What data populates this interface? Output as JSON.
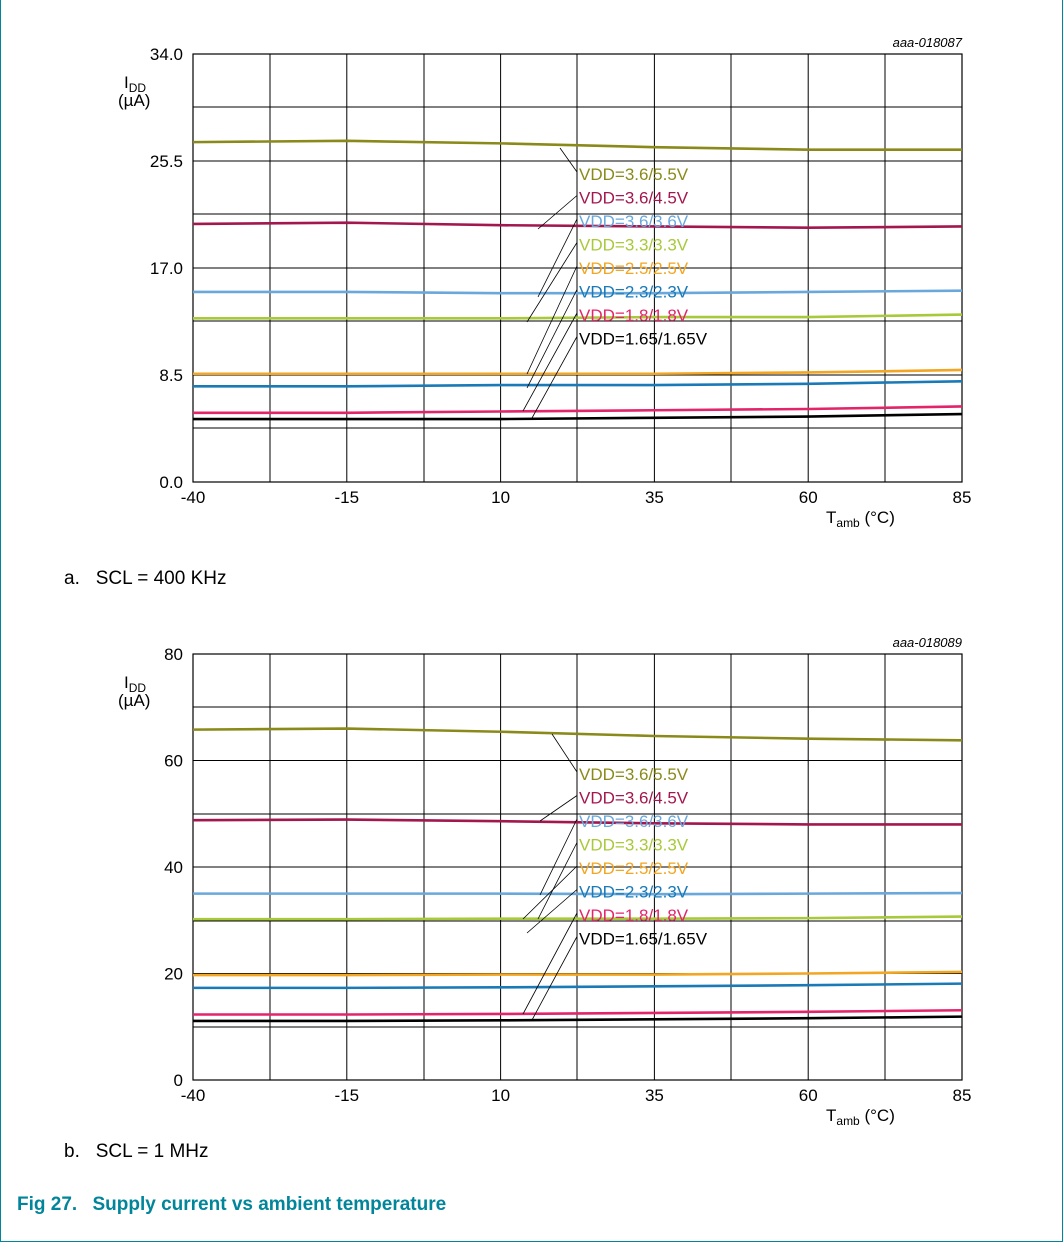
{
  "figure": {
    "number": "Fig 27.",
    "title": "Supply current vs ambient temperature"
  },
  "colors": {
    "frame": "#00859a",
    "title": "#00859a"
  },
  "chart_data": [
    {
      "type": "line",
      "id": "aaa-018087",
      "caption_letter": "a.",
      "caption": "SCL = 400 KHz",
      "ylabel_main": "I",
      "ylabel_sub": "DD",
      "yunit": "(µA)",
      "xlabel_main": "T",
      "xlabel_sub": "amb",
      "xunit": "(°C)",
      "x": [
        -40,
        -15,
        10,
        35,
        60,
        85
      ],
      "x_ticks": [
        "-40",
        "-15",
        "10",
        "35",
        "60",
        "85"
      ],
      "y_ticks": [
        "0.0",
        "8.5",
        "17.0",
        "25.5",
        "34.0"
      ],
      "ylim": [
        0,
        34
      ],
      "xlim": [
        -40,
        85
      ],
      "grid": true,
      "series": [
        {
          "name": "VDD=3.6/5.5V",
          "color": "#8a8a1a",
          "values": [
            27.0,
            27.1,
            26.9,
            26.6,
            26.4,
            26.4
          ]
        },
        {
          "name": "VDD=3.6/4.5V",
          "color": "#a3174f",
          "values": [
            20.5,
            20.6,
            20.4,
            20.3,
            20.2,
            20.3
          ]
        },
        {
          "name": "VDD=3.6/3.6V",
          "color": "#6aa8dc",
          "values": [
            15.1,
            15.1,
            15.0,
            15.0,
            15.1,
            15.2
          ]
        },
        {
          "name": "VDD=3.3/3.3V",
          "color": "#a8c93a",
          "values": [
            13.0,
            13.0,
            13.0,
            13.1,
            13.1,
            13.3
          ]
        },
        {
          "name": "VDD=2.5/2.5V",
          "color": "#f2a623",
          "values": [
            8.6,
            8.6,
            8.6,
            8.6,
            8.7,
            8.9
          ]
        },
        {
          "name": "VDD=2.3/2.3V",
          "color": "#1a7ab8",
          "values": [
            7.6,
            7.6,
            7.7,
            7.7,
            7.8,
            8.0
          ]
        },
        {
          "name": "VDD=1.8/1.8V",
          "color": "#e3246a",
          "values": [
            5.5,
            5.5,
            5.6,
            5.7,
            5.8,
            6.0
          ]
        },
        {
          "name": "VDD=1.65/1.65V",
          "color": "#000000",
          "values": [
            5.0,
            5.0,
            5.0,
            5.1,
            5.2,
            5.4
          ]
        }
      ]
    },
    {
      "type": "line",
      "id": "aaa-018089",
      "caption_letter": "b.",
      "caption": "SCL = 1 MHz",
      "ylabel_main": "I",
      "ylabel_sub": "DD",
      "yunit": "(µA)",
      "xlabel_main": "T",
      "xlabel_sub": "amb",
      "xunit": "(°C)",
      "x": [
        -40,
        -15,
        10,
        35,
        60,
        85
      ],
      "x_ticks": [
        "-40",
        "-15",
        "10",
        "35",
        "60",
        "85"
      ],
      "y_ticks": [
        "0",
        "20",
        "40",
        "60",
        "80"
      ],
      "ylim": [
        0,
        80
      ],
      "xlim": [
        -40,
        85
      ],
      "grid": true,
      "series": [
        {
          "name": "VDD=3.6/5.5V",
          "color": "#8a8a1a",
          "values": [
            65.8,
            66.0,
            65.4,
            64.6,
            64.1,
            63.8
          ]
        },
        {
          "name": "VDD=3.6/4.5V",
          "color": "#a3174f",
          "values": [
            48.8,
            48.9,
            48.6,
            48.2,
            48.0,
            48.0
          ]
        },
        {
          "name": "VDD=3.6/3.6V",
          "color": "#6aa8dc",
          "values": [
            35.0,
            35.0,
            35.0,
            34.9,
            35.0,
            35.1
          ]
        },
        {
          "name": "VDD=3.3/3.3V",
          "color": "#a8c93a",
          "values": [
            30.2,
            30.2,
            30.3,
            30.3,
            30.4,
            30.7
          ]
        },
        {
          "name": "VDD=2.5/2.5V",
          "color": "#f2a623",
          "values": [
            19.7,
            19.7,
            19.8,
            19.8,
            20.0,
            20.3
          ]
        },
        {
          "name": "VDD=2.3/2.3V",
          "color": "#1a7ab8",
          "values": [
            17.3,
            17.3,
            17.4,
            17.6,
            17.8,
            18.1
          ]
        },
        {
          "name": "VDD=1.8/1.8V",
          "color": "#e3246a",
          "values": [
            12.3,
            12.3,
            12.4,
            12.6,
            12.8,
            13.1
          ]
        },
        {
          "name": "VDD=1.65/1.65V",
          "color": "#000000",
          "values": [
            11.1,
            11.1,
            11.2,
            11.4,
            11.6,
            11.9
          ]
        }
      ]
    }
  ]
}
